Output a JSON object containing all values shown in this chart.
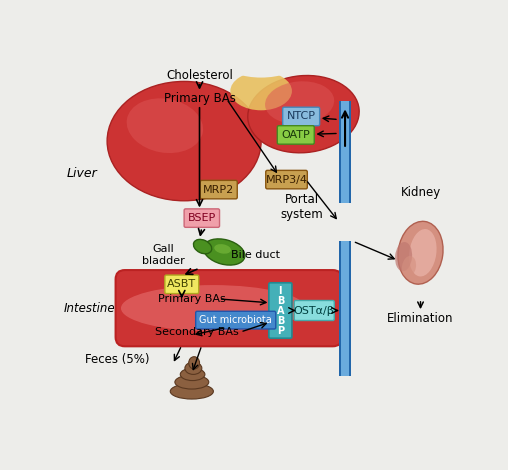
{
  "bg_color": "#ededea",
  "liver_color": "#cc3333",
  "liver_edge": "#aa2222",
  "liver_hilite": "#dd6666",
  "liver_yellow": "#e8c060",
  "intestine_color": "#e06060",
  "intestine_dark": "#cc3333",
  "gallbladder_color": "#4a9020",
  "gallbladder_hilite": "#80c040",
  "gallbladder_edge": "#2a6010",
  "kidney_outer": "#d49080",
  "kidney_inner": "#e8b0a8",
  "kidney_notch": "#c07070",
  "portal_color": "#6aabdd",
  "portal_dark": "#2266aa",
  "feces_color": "#8B6040",
  "feces_edge": "#5a3820",
  "ntcp_color": "#88bbdd",
  "ntcp_edge": "#4488bb",
  "oatp_color": "#88cc44",
  "oatp_edge": "#448820",
  "mrp2_color": "#c8a050",
  "mrp2_edge": "#885510",
  "mrp34_color": "#c8a050",
  "mrp34_edge": "#885510",
  "bsep_color": "#f0a0aa",
  "bsep_edge": "#cc6677",
  "asbt_color": "#f0e860",
  "asbt_edge": "#b0aa20",
  "ibabp_color": "#44b0b8",
  "ibabp_edge": "#228890",
  "osta_color": "#88dddd",
  "osta_edge": "#44aaaa",
  "gut_color": "#4488cc",
  "gut_edge": "#2255aa",
  "labels": {
    "liver": "Liver",
    "intestine": "Intestine",
    "feces": "Feces (5%)",
    "portal": "Portal\nsystem",
    "kidney": "Kidney",
    "elimination": "Elimination",
    "cholesterol": "Cholesterol",
    "primary_bas_liver": "Primary BAs",
    "mrp2": "MRP2",
    "mrp34": "MRP3/4",
    "bsep": "BSEP",
    "ntcp": "NTCP",
    "oatp": "OATP",
    "gall_bladder": "Gall\nbladder",
    "bile_duct": "Bile duct",
    "asbt": "ASBT",
    "primary_bas_int": "Primary BAs",
    "secondary_bas": "Secondary BAs",
    "gut_microbiota": "Gut microbiota",
    "ibabp": "I\nB\nA\nB\nP",
    "osta": "OSTα/β"
  }
}
